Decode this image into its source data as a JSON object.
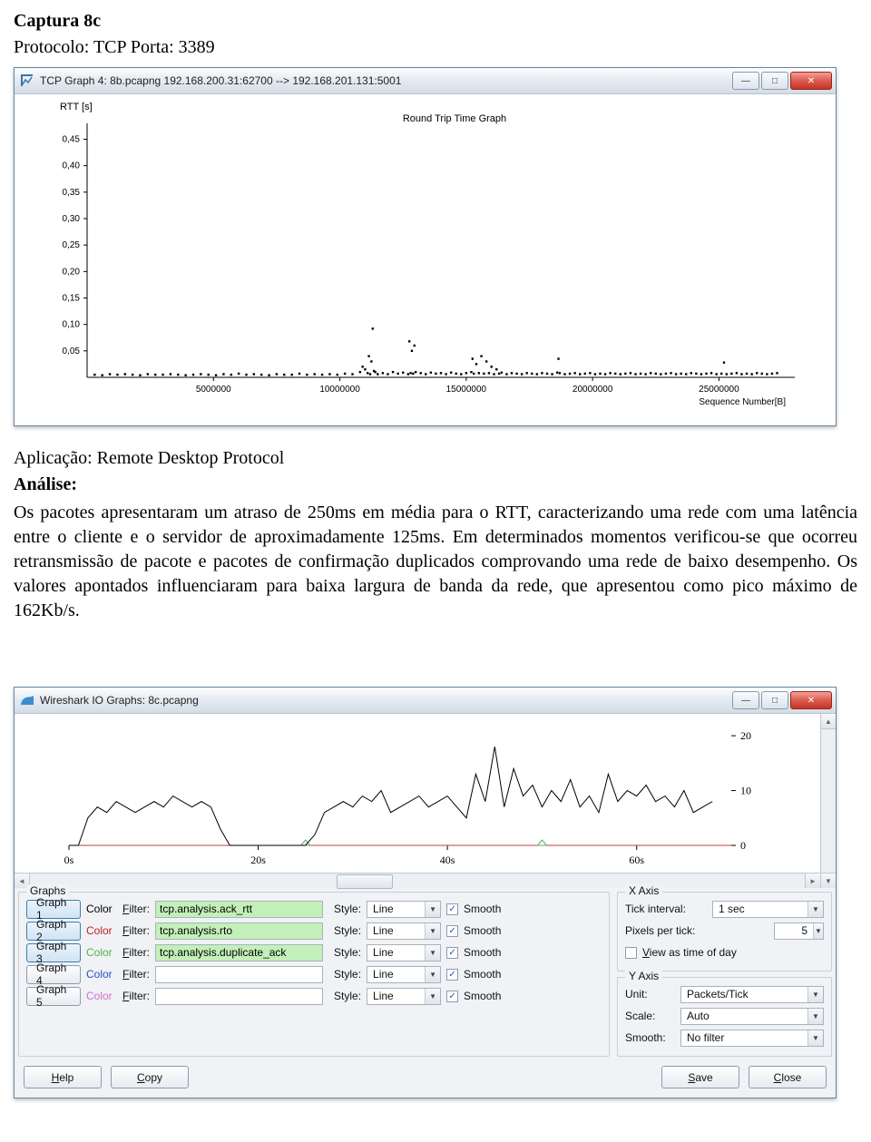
{
  "doc": {
    "heading": "Captura 8c",
    "protocol_line_prefix": "Protocolo: TCP",
    "protocol_line_suffix": "  Porta: 3389",
    "app_line": "Aplicação: Remote Desktop Protocol",
    "analysis_label": "Análise:",
    "analysis_body": "Os pacotes apresentaram um atraso de 250ms em média para o RTT, caracterizando uma rede com uma latência entre o cliente e o servidor de aproximadamente 125ms. Em determinados momentos verificou-se que ocorreu retransmissão de pacote e pacotes de confirmação duplicados comprovando uma rede de baixo desempenho. Os valores apontados influenciaram para baixa largura de banda da rede, que apresentou como pico máximo de 162Kb/s."
  },
  "window1": {
    "title": "TCP Graph 4: 8b.pcapng 192.168.200.31:62700 --> 192.168.201.131:5001",
    "chart_title": "Round Trip Time Graph",
    "y_label": "RTT [s]",
    "x_label": "Sequence Number[B]",
    "y_ticks": [
      "0,05",
      "0,10",
      "0,15",
      "0,20",
      "0,25",
      "0,30",
      "0,35",
      "0,40",
      "0,45"
    ],
    "y_max_value": 0.48,
    "x_ticks": [
      "5000000",
      "10000000",
      "15000000",
      "20000000",
      "25000000"
    ],
    "x_max_value": 28000000,
    "colors": {
      "bg": "#ffffff",
      "axis": "#000000",
      "point": "#000000"
    },
    "scatter": [
      [
        300000,
        0.005
      ],
      [
        600000,
        0.004
      ],
      [
        900000,
        0.006
      ],
      [
        1200000,
        0.005
      ],
      [
        1500000,
        0.006
      ],
      [
        1800000,
        0.005
      ],
      [
        2100000,
        0.004
      ],
      [
        2400000,
        0.006
      ],
      [
        2700000,
        0.005
      ],
      [
        3000000,
        0.005
      ],
      [
        3300000,
        0.006
      ],
      [
        3600000,
        0.005
      ],
      [
        3900000,
        0.004
      ],
      [
        4200000,
        0.005
      ],
      [
        4500000,
        0.006
      ],
      [
        4800000,
        0.005
      ],
      [
        5100000,
        0.004
      ],
      [
        5400000,
        0.006
      ],
      [
        5700000,
        0.005
      ],
      [
        6000000,
        0.007
      ],
      [
        6300000,
        0.005
      ],
      [
        6600000,
        0.006
      ],
      [
        6900000,
        0.005
      ],
      [
        7200000,
        0.004
      ],
      [
        7500000,
        0.006
      ],
      [
        7800000,
        0.005
      ],
      [
        8100000,
        0.005
      ],
      [
        8400000,
        0.007
      ],
      [
        8700000,
        0.005
      ],
      [
        9000000,
        0.006
      ],
      [
        9300000,
        0.005
      ],
      [
        9600000,
        0.006
      ],
      [
        9900000,
        0.005
      ],
      [
        10200000,
        0.007
      ],
      [
        10500000,
        0.006
      ],
      [
        10800000,
        0.01
      ],
      [
        10900000,
        0.02
      ],
      [
        11000000,
        0.015
      ],
      [
        11100000,
        0.008
      ],
      [
        11150000,
        0.04
      ],
      [
        11200000,
        0.006
      ],
      [
        11250000,
        0.03
      ],
      [
        11300000,
        0.092
      ],
      [
        11350000,
        0.012
      ],
      [
        11400000,
        0.01
      ],
      [
        11500000,
        0.006
      ],
      [
        11700000,
        0.008
      ],
      [
        11900000,
        0.006
      ],
      [
        12100000,
        0.01
      ],
      [
        12300000,
        0.007
      ],
      [
        12500000,
        0.009
      ],
      [
        12700000,
        0.006
      ],
      [
        12750000,
        0.068
      ],
      [
        12800000,
        0.008
      ],
      [
        12850000,
        0.05
      ],
      [
        12900000,
        0.007
      ],
      [
        12950000,
        0.06
      ],
      [
        13000000,
        0.01
      ],
      [
        13200000,
        0.008
      ],
      [
        13400000,
        0.006
      ],
      [
        13600000,
        0.009
      ],
      [
        13800000,
        0.007
      ],
      [
        14000000,
        0.008
      ],
      [
        14200000,
        0.006
      ],
      [
        14400000,
        0.009
      ],
      [
        14600000,
        0.007
      ],
      [
        14800000,
        0.006
      ],
      [
        15000000,
        0.008
      ],
      [
        15200000,
        0.01
      ],
      [
        15250000,
        0.035
      ],
      [
        15300000,
        0.007
      ],
      [
        15400000,
        0.025
      ],
      [
        15500000,
        0.008
      ],
      [
        15600000,
        0.04
      ],
      [
        15700000,
        0.007
      ],
      [
        15800000,
        0.03
      ],
      [
        15900000,
        0.008
      ],
      [
        16000000,
        0.02
      ],
      [
        16100000,
        0.006
      ],
      [
        16200000,
        0.015
      ],
      [
        16300000,
        0.007
      ],
      [
        16400000,
        0.009
      ],
      [
        16600000,
        0.006
      ],
      [
        16800000,
        0.008
      ],
      [
        17000000,
        0.007
      ],
      [
        17200000,
        0.006
      ],
      [
        17400000,
        0.008
      ],
      [
        17600000,
        0.007
      ],
      [
        17800000,
        0.006
      ],
      [
        18000000,
        0.008
      ],
      [
        18200000,
        0.007
      ],
      [
        18400000,
        0.006
      ],
      [
        18600000,
        0.009
      ],
      [
        18650000,
        0.035
      ],
      [
        18700000,
        0.008
      ],
      [
        18900000,
        0.006
      ],
      [
        19100000,
        0.007
      ],
      [
        19300000,
        0.008
      ],
      [
        19500000,
        0.006
      ],
      [
        19700000,
        0.007
      ],
      [
        19900000,
        0.008
      ],
      [
        20100000,
        0.006
      ],
      [
        20300000,
        0.007
      ],
      [
        20500000,
        0.006
      ],
      [
        20700000,
        0.008
      ],
      [
        20900000,
        0.007
      ],
      [
        21100000,
        0.006
      ],
      [
        21300000,
        0.007
      ],
      [
        21500000,
        0.008
      ],
      [
        21700000,
        0.006
      ],
      [
        21900000,
        0.007
      ],
      [
        22100000,
        0.006
      ],
      [
        22300000,
        0.008
      ],
      [
        22500000,
        0.007
      ],
      [
        22700000,
        0.006
      ],
      [
        22900000,
        0.007
      ],
      [
        23100000,
        0.008
      ],
      [
        23300000,
        0.006
      ],
      [
        23500000,
        0.007
      ],
      [
        23700000,
        0.006
      ],
      [
        23900000,
        0.008
      ],
      [
        24100000,
        0.007
      ],
      [
        24300000,
        0.006
      ],
      [
        24500000,
        0.007
      ],
      [
        24700000,
        0.008
      ],
      [
        24900000,
        0.006
      ],
      [
        25100000,
        0.007
      ],
      [
        25200000,
        0.028
      ],
      [
        25300000,
        0.006
      ],
      [
        25500000,
        0.007
      ],
      [
        25700000,
        0.008
      ],
      [
        25900000,
        0.006
      ],
      [
        26100000,
        0.007
      ],
      [
        26300000,
        0.006
      ],
      [
        26500000,
        0.008
      ],
      [
        26700000,
        0.007
      ],
      [
        26900000,
        0.006
      ],
      [
        27100000,
        0.007
      ],
      [
        27300000,
        0.008
      ]
    ]
  },
  "window2": {
    "title": "Wireshark IO Graphs: 8c.pcapng",
    "chart": {
      "x_ticks": [
        "0s",
        "20s",
        "40s",
        "60s"
      ],
      "y_ticks": [
        "0",
        "10",
        "20"
      ],
      "x_max": 70,
      "y_max": 22,
      "line_color": "#000000",
      "axis_color": "#000000",
      "tick_font": 12,
      "series": [
        [
          0,
          0
        ],
        [
          1,
          0
        ],
        [
          2,
          5
        ],
        [
          3,
          7
        ],
        [
          4,
          6
        ],
        [
          5,
          8
        ],
        [
          6,
          7
        ],
        [
          7,
          6
        ],
        [
          8,
          7
        ],
        [
          9,
          8
        ],
        [
          10,
          7
        ],
        [
          11,
          9
        ],
        [
          12,
          8
        ],
        [
          13,
          7
        ],
        [
          14,
          8
        ],
        [
          15,
          7
        ],
        [
          16,
          3
        ],
        [
          17,
          0
        ],
        [
          18,
          0
        ],
        [
          19,
          0
        ],
        [
          20,
          0
        ],
        [
          21,
          0
        ],
        [
          22,
          0
        ],
        [
          23,
          0
        ],
        [
          24,
          0
        ],
        [
          25,
          0
        ],
        [
          26,
          2
        ],
        [
          27,
          6
        ],
        [
          28,
          7
        ],
        [
          29,
          8
        ],
        [
          30,
          7
        ],
        [
          31,
          9
        ],
        [
          32,
          8
        ],
        [
          33,
          10
        ],
        [
          34,
          6
        ],
        [
          35,
          7
        ],
        [
          36,
          8
        ],
        [
          37,
          9
        ],
        [
          38,
          7
        ],
        [
          39,
          8
        ],
        [
          40,
          9
        ],
        [
          41,
          7
        ],
        [
          42,
          5
        ],
        [
          43,
          13
        ],
        [
          44,
          8
        ],
        [
          45,
          18
        ],
        [
          46,
          7
        ],
        [
          47,
          14
        ],
        [
          48,
          9
        ],
        [
          49,
          11
        ],
        [
          50,
          7
        ],
        [
          51,
          10
        ],
        [
          52,
          8
        ],
        [
          53,
          12
        ],
        [
          54,
          7
        ],
        [
          55,
          9
        ],
        [
          56,
          6
        ],
        [
          57,
          13
        ],
        [
          58,
          8
        ],
        [
          59,
          10
        ],
        [
          60,
          9
        ],
        [
          61,
          11
        ],
        [
          62,
          8
        ],
        [
          63,
          9
        ],
        [
          64,
          7
        ],
        [
          65,
          10
        ],
        [
          66,
          6
        ],
        [
          67,
          7
        ],
        [
          68,
          8
        ]
      ],
      "baseline_color": "#c04040",
      "markers": [
        {
          "x": 25,
          "color": "#5faa5f"
        },
        {
          "x": 50,
          "color": "#5faa5f"
        }
      ]
    },
    "graphs_label": "Graphs",
    "xaxis_label": "X Axis",
    "yaxis_label": "Y Axis",
    "color_label": "Color",
    "filter_underline": "F",
    "filter_rest": "ilter:",
    "style_label": "Style:",
    "smooth_cb_label": "Smooth",
    "style_value": "Line",
    "rows": [
      {
        "btn": "Graph 1",
        "active": true,
        "box_color": "#000000",
        "filter": "tcp.analysis.ack_rtt",
        "filter_bg": "green",
        "smooth": true
      },
      {
        "btn": "Graph 2",
        "active": true,
        "box_color": "#c02020",
        "filter": "tcp.analysis.rto",
        "filter_bg": "green",
        "smooth": true
      },
      {
        "btn": "Graph 3",
        "active": true,
        "box_color": "#50b050",
        "filter": "tcp.analysis.duplicate_ack",
        "filter_bg": "green",
        "smooth": true
      },
      {
        "btn": "Graph 4",
        "active": false,
        "box_color": "#2050c0",
        "filter": "",
        "filter_bg": "white",
        "smooth": true
      },
      {
        "btn": "Graph 5",
        "active": false,
        "box_color": "#d070d0",
        "filter": "",
        "filter_bg": "white",
        "smooth": true
      }
    ],
    "xaxis": {
      "tick_label": "Tick interval:",
      "tick_value": "1 sec",
      "ppt_label": "Pixels per tick:",
      "ppt_value": "5",
      "tod_label_u": "V",
      "tod_label_r": "iew as time of day",
      "tod_checked": false
    },
    "yaxis": {
      "unit_label": "Unit:",
      "unit_value": "Packets/Tick",
      "scale_label": "Scale:",
      "scale_value": "Auto",
      "smooth_label": "Smooth:",
      "smooth_value": "No filter"
    },
    "buttons": {
      "help_u": "H",
      "help_r": "elp",
      "copy_u": "C",
      "copy_r": "opy",
      "save_u": "S",
      "save_r": "ave",
      "close_u": "C",
      "close_r": "lose"
    }
  }
}
